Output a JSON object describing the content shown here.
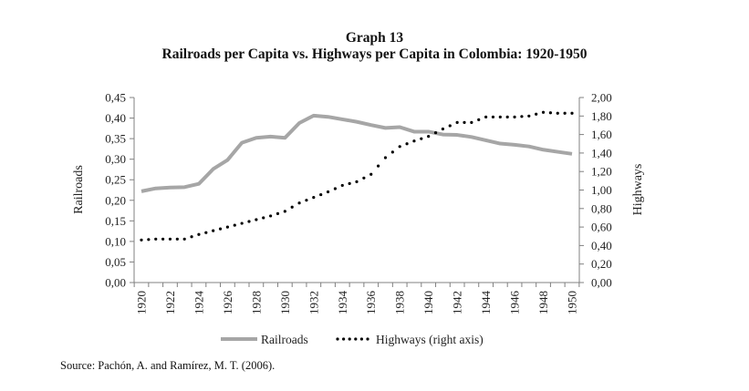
{
  "chart_data": {
    "type": "line",
    "title": "Graph 13",
    "subtitle": "Railroads per Capita vs. Highways per Capita in Colombia: 1920-1950",
    "xlabel": "",
    "ylabel": "Railroads",
    "ylabel_right": "Highways",
    "x": [
      1920,
      1921,
      1922,
      1923,
      1924,
      1925,
      1926,
      1927,
      1928,
      1929,
      1930,
      1931,
      1932,
      1933,
      1934,
      1935,
      1936,
      1937,
      1938,
      1939,
      1940,
      1941,
      1942,
      1943,
      1944,
      1945,
      1946,
      1947,
      1948,
      1949,
      1950
    ],
    "x_tick_labels": [
      "1920",
      "1922",
      "1924",
      "1926",
      "1928",
      "1930",
      "1932",
      "1934",
      "1936",
      "1938",
      "1940",
      "1942",
      "1944",
      "1946",
      "1948",
      "1950"
    ],
    "ylim": [
      0,
      0.45
    ],
    "ylim_right": [
      0,
      2.0
    ],
    "y_tick_labels": [
      "0,00",
      "0,05",
      "0,10",
      "0,15",
      "0,20",
      "0,25",
      "0,30",
      "0,35",
      "0,40",
      "0,45"
    ],
    "y_tick_values": [
      0,
      0.05,
      0.1,
      0.15,
      0.2,
      0.25,
      0.3,
      0.35,
      0.4,
      0.45
    ],
    "y_right_tick_labels": [
      "0,00",
      "0,20",
      "0,40",
      "0,60",
      "0,80",
      "1,00",
      "1,20",
      "1,40",
      "1,60",
      "1,80",
      "2,00"
    ],
    "y_right_tick_values": [
      0,
      0.2,
      0.4,
      0.6,
      0.8,
      1.0,
      1.2,
      1.4,
      1.6,
      1.8,
      2.0
    ],
    "grid": false,
    "legend_position": "bottom",
    "series": [
      {
        "name": "Railroads",
        "axis": "left",
        "style": "solid",
        "color": "#a6a6a6",
        "values": [
          0.222,
          0.229,
          0.231,
          0.232,
          0.24,
          0.276,
          0.298,
          0.34,
          0.352,
          0.355,
          0.352,
          0.388,
          0.406,
          0.403,
          0.397,
          0.391,
          0.383,
          0.376,
          0.378,
          0.367,
          0.367,
          0.36,
          0.359,
          0.354,
          0.346,
          0.338,
          0.335,
          0.331,
          0.323,
          0.318,
          0.313
        ]
      },
      {
        "name": "Highways (right axis)",
        "axis": "right",
        "style": "dotted",
        "color": "#000000",
        "values": [
          0.46,
          0.47,
          0.47,
          0.47,
          0.52,
          0.56,
          0.6,
          0.64,
          0.68,
          0.72,
          0.77,
          0.86,
          0.92,
          0.98,
          1.05,
          1.09,
          1.17,
          1.35,
          1.47,
          1.53,
          1.58,
          1.66,
          1.73,
          1.73,
          1.79,
          1.79,
          1.79,
          1.8,
          1.84,
          1.83,
          1.83
        ]
      }
    ]
  },
  "source": "Source: Pachón, A. and Ramírez, M. T. (2006)."
}
